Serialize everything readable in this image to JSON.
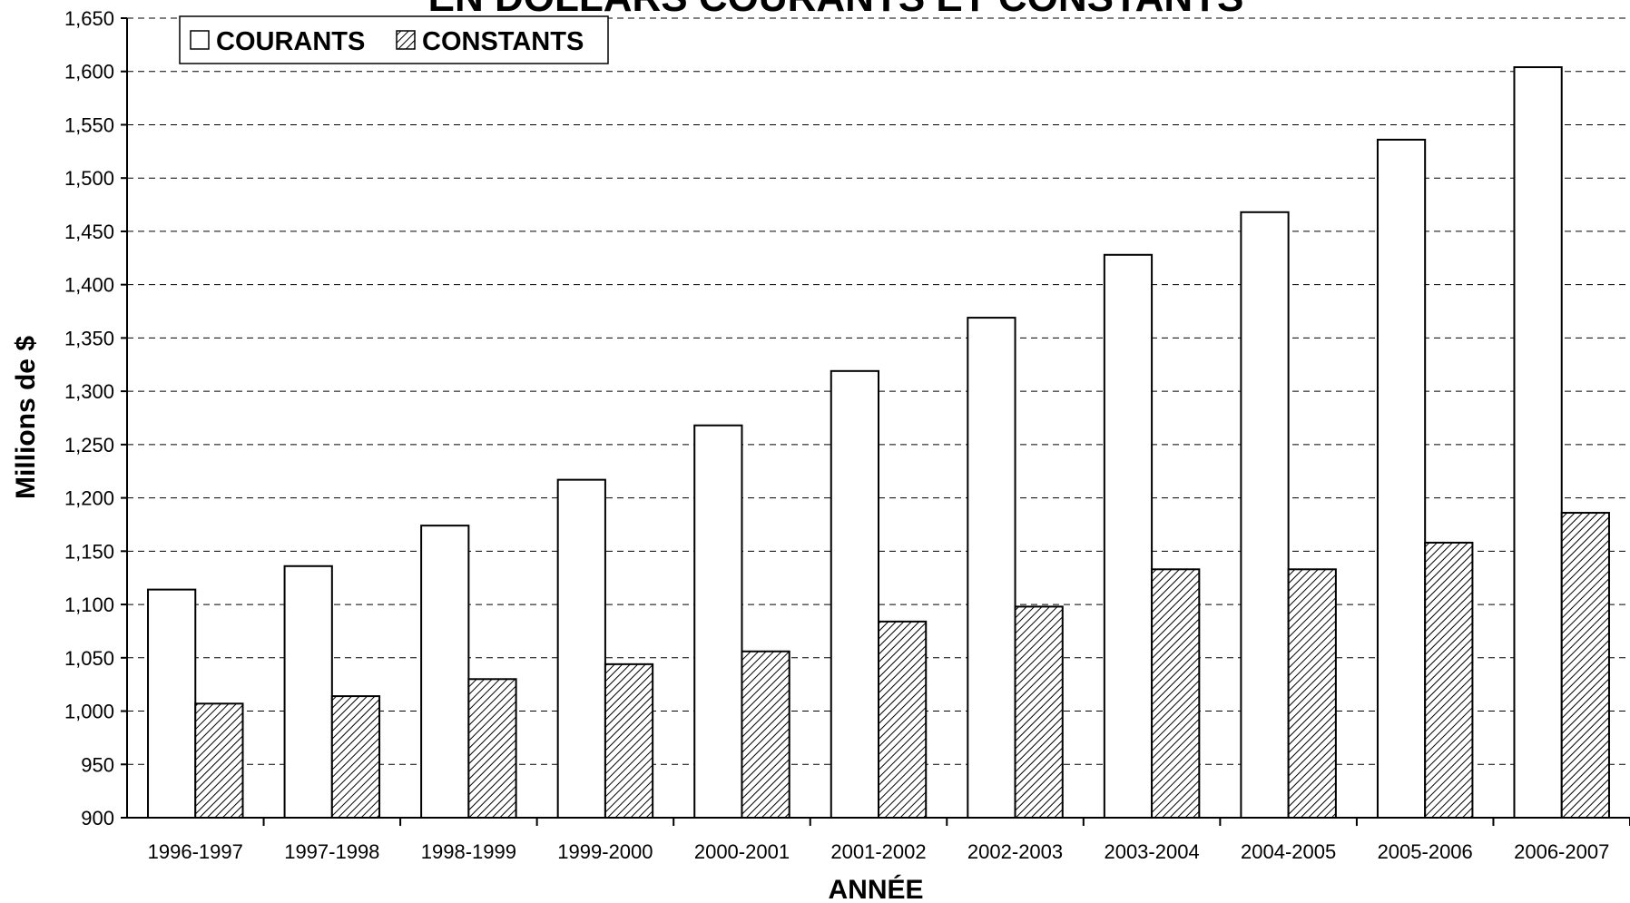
{
  "chart_data": {
    "type": "bar",
    "title": "EN DOLLARS COURANTS ET CONSTANTS",
    "xlabel": "ANNÉE",
    "ylabel": "Millions de $",
    "ylim": [
      900,
      1650
    ],
    "y_ticks": [
      "900",
      "950",
      "1,000",
      "1,050",
      "1,100",
      "1,150",
      "1,200",
      "1,250",
      "1,300",
      "1,350",
      "1,400",
      "1,450",
      "1,500",
      "1,550",
      "1,600",
      "1,650"
    ],
    "grid": "horizontal dashed",
    "legend_position": "top-left",
    "categories": [
      "1996-1997",
      "1997-1998",
      "1998-1999",
      "1999-2000",
      "2000-2001",
      "2001-2002",
      "2002-2003",
      "2003-2004",
      "2004-2005",
      "2005-2006",
      "2006-2007"
    ],
    "series": [
      {
        "name": "COURANTS",
        "fill": "white",
        "values": [
          1114,
          1136,
          1174,
          1217,
          1268,
          1319,
          1369,
          1428,
          1468,
          1536,
          1604
        ]
      },
      {
        "name": "CONSTANTS",
        "fill": "hatched",
        "values": [
          1007,
          1014,
          1030,
          1044,
          1056,
          1084,
          1098,
          1133,
          1133,
          1158,
          1186
        ]
      }
    ]
  }
}
